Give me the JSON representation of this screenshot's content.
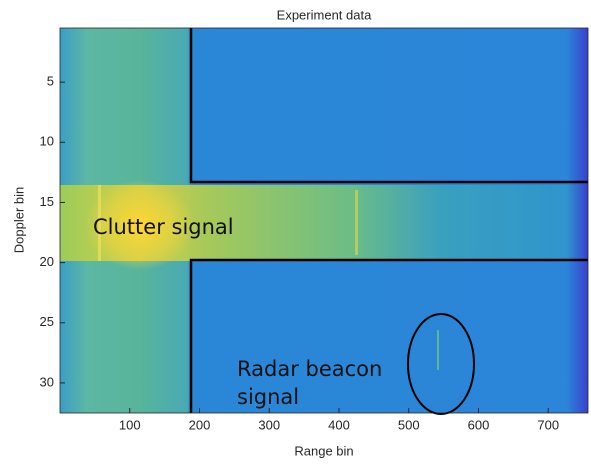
{
  "chart_data": {
    "type": "heatmap",
    "title": "Experiment data",
    "xlabel": "Range bin",
    "ylabel": "Doppler bin",
    "xlim": [
      0,
      757
    ],
    "ylim": [
      0.5,
      32.5
    ],
    "y_reversed": true,
    "xticks": [
      100,
      200,
      300,
      400,
      500,
      600,
      700
    ],
    "yticks": [
      5,
      10,
      15,
      20,
      25,
      30
    ],
    "annotations": {
      "clutter": "Clutter signal",
      "beacon": [
        "Radar beacon",
        "signal"
      ]
    }
  }
}
